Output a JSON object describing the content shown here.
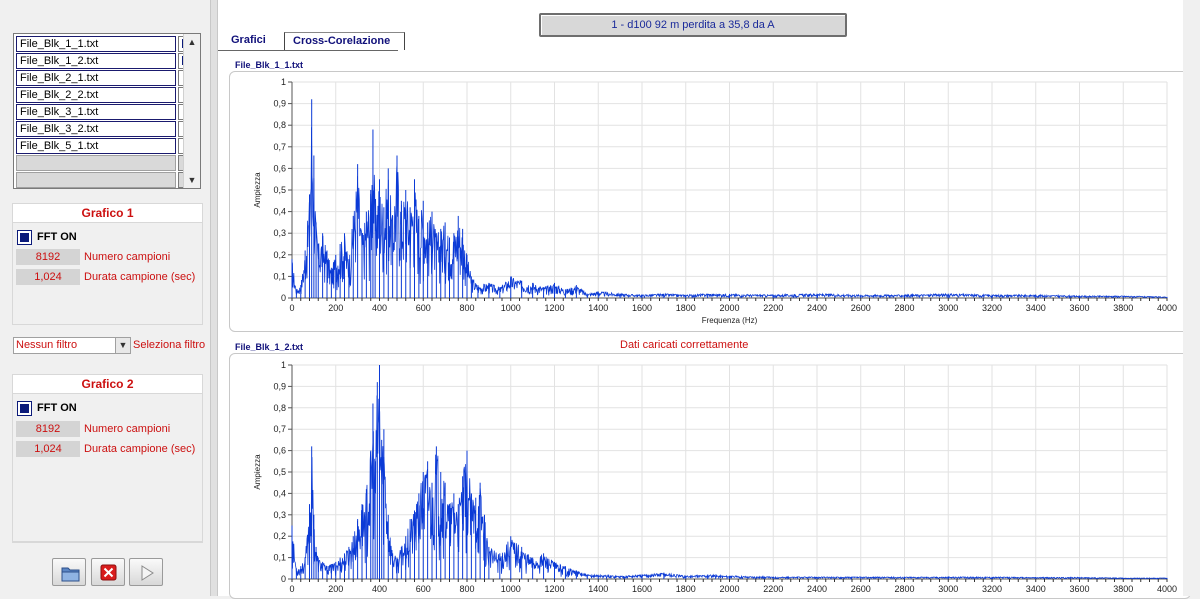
{
  "files": [
    {
      "name": "File_Blk_1_1.txt",
      "checked": true
    },
    {
      "name": "File_Blk_1_2.txt",
      "checked": true
    },
    {
      "name": "File_Blk_2_1.txt",
      "checked": false
    },
    {
      "name": "File_Blk_2_2.txt",
      "checked": false
    },
    {
      "name": "File_Blk_3_1.txt",
      "checked": false
    },
    {
      "name": "File_Blk_3_2.txt",
      "checked": false
    },
    {
      "name": "File_Blk_5_1.txt",
      "checked": false
    }
  ],
  "grafico1": {
    "header": "Grafico 1",
    "fft_label": "FFT ON",
    "num_campioni_value": "8192",
    "num_campioni_label": "Numero campioni",
    "durata_value": "1,024",
    "durata_label": "Durata campione (sec)"
  },
  "filter": {
    "selected": "Nessun filtro",
    "label": "Seleziona filtro"
  },
  "grafico2": {
    "header": "Grafico 2",
    "fft_label": "FFT ON",
    "num_campioni_value": "8192",
    "num_campioni_label": "Numero campioni",
    "durata_value": "1,024",
    "durata_label": "Durata campione (sec)"
  },
  "status_text": "1 - d100 92 m  perdita a 35,8 da A",
  "tabs": {
    "grafici": "Grafici",
    "cross": "Cross-Corelazione"
  },
  "load_message": "Dati caricati correttamente",
  "colors": {
    "series": "#0b3ad6",
    "accent_red": "#cc1010",
    "navy": "#10107a"
  },
  "chart_data": [
    {
      "type": "line",
      "title": "File_Blk_1_1.txt",
      "xlabel": "Frequenza (Hz)",
      "ylabel": "Ampiezza",
      "xlim": [
        0,
        4000
      ],
      "ylim": [
        0,
        1
      ],
      "xticks": [
        "0",
        "200",
        "400",
        "600",
        "800",
        "1000",
        "1200",
        "1400",
        "1600",
        "1800",
        "2000",
        "2200",
        "2400",
        "2600",
        "2800",
        "3000",
        "3200",
        "3400",
        "3600",
        "3800",
        "4000"
      ],
      "yticks": [
        "0",
        "0,1",
        "0,2",
        "0,3",
        "0,4",
        "0,5",
        "0,6",
        "0,7",
        "0,8",
        "0,9",
        "1"
      ],
      "grid": true,
      "series": [
        {
          "x": [
            0,
            20,
            40,
            60,
            80,
            90,
            100,
            110,
            120,
            140,
            160,
            180,
            200,
            220,
            240,
            260,
            280,
            300,
            320,
            340,
            360,
            370,
            380,
            400,
            420,
            440,
            460,
            480,
            500,
            520,
            540,
            560,
            580,
            600,
            620,
            640,
            660,
            680,
            700,
            720,
            740,
            760,
            780,
            800,
            820,
            850,
            900,
            950,
            1000,
            1050,
            1100,
            1150,
            1200,
            1250,
            1300,
            1350,
            1400,
            1500,
            1600,
            1700,
            1800,
            1900,
            2000,
            2200,
            2400,
            2600,
            2800,
            3000,
            3200,
            3400,
            3600,
            3800,
            4000
          ],
          "y": [
            0.18,
            0.04,
            0.06,
            0.22,
            0.48,
            0.92,
            0.66,
            0.35,
            0.25,
            0.3,
            0.22,
            0.14,
            0.2,
            0.25,
            0.3,
            0.18,
            0.38,
            0.62,
            0.3,
            0.4,
            0.5,
            0.78,
            0.45,
            0.55,
            0.42,
            0.6,
            0.38,
            0.66,
            0.45,
            0.5,
            0.42,
            0.55,
            0.38,
            0.45,
            0.35,
            0.4,
            0.3,
            0.32,
            0.35,
            0.28,
            0.3,
            0.38,
            0.32,
            0.2,
            0.1,
            0.06,
            0.07,
            0.05,
            0.1,
            0.08,
            0.07,
            0.05,
            0.07,
            0.04,
            0.06,
            0.02,
            0.03,
            0.02,
            0.015,
            0.02,
            0.015,
            0.02,
            0.018,
            0.015,
            0.02,
            0.015,
            0.015,
            0.02,
            0.015,
            0.015,
            0.01,
            0.01,
            0.005
          ]
        }
      ]
    },
    {
      "type": "line",
      "title": "File_Blk_1_2.txt",
      "xlabel": "",
      "ylabel": "Ampiezza",
      "xlim": [
        0,
        4000
      ],
      "ylim": [
        0,
        1
      ],
      "xticks": [
        "0",
        "200",
        "400",
        "600",
        "800",
        "1000",
        "1200",
        "1400",
        "1600",
        "1800",
        "2000",
        "2200",
        "2400",
        "2600",
        "2800",
        "3000",
        "3200",
        "3400",
        "3600",
        "3800",
        "4000"
      ],
      "yticks": [
        "0",
        "0,1",
        "0,2",
        "0,3",
        "0,4",
        "0,5",
        "0,6",
        "0,7",
        "0,8",
        "0,9",
        "1"
      ],
      "grid": true,
      "series": [
        {
          "x": [
            0,
            20,
            40,
            60,
            80,
            90,
            100,
            110,
            120,
            140,
            160,
            180,
            200,
            220,
            240,
            260,
            280,
            300,
            320,
            340,
            360,
            370,
            380,
            390,
            400,
            410,
            420,
            440,
            460,
            480,
            500,
            520,
            540,
            560,
            580,
            600,
            620,
            640,
            660,
            680,
            700,
            720,
            740,
            760,
            780,
            800,
            820,
            840,
            860,
            880,
            900,
            950,
            1000,
            1050,
            1100,
            1150,
            1200,
            1250,
            1300,
            1350,
            1400,
            1500,
            1600,
            1700,
            1800,
            1900,
            2000,
            2200,
            2400,
            2600,
            2800,
            3000,
            3200,
            3400,
            3600,
            3800,
            4000
          ],
          "y": [
            0.25,
            0.05,
            0.06,
            0.1,
            0.35,
            0.62,
            0.3,
            0.15,
            0.1,
            0.08,
            0.06,
            0.07,
            0.08,
            0.1,
            0.12,
            0.15,
            0.2,
            0.28,
            0.35,
            0.42,
            0.6,
            0.82,
            0.55,
            0.92,
            1.0,
            0.65,
            0.7,
            0.3,
            0.12,
            0.1,
            0.15,
            0.2,
            0.28,
            0.32,
            0.4,
            0.5,
            0.55,
            0.45,
            0.62,
            0.5,
            0.45,
            0.35,
            0.4,
            0.35,
            0.48,
            0.6,
            0.4,
            0.38,
            0.45,
            0.3,
            0.15,
            0.12,
            0.2,
            0.15,
            0.1,
            0.12,
            0.08,
            0.06,
            0.04,
            0.02,
            0.02,
            0.015,
            0.02,
            0.03,
            0.015,
            0.02,
            0.015,
            0.01,
            0.01,
            0.01,
            0.01,
            0.01,
            0.01,
            0.008,
            0.008,
            0.005,
            0.005
          ]
        }
      ]
    }
  ]
}
